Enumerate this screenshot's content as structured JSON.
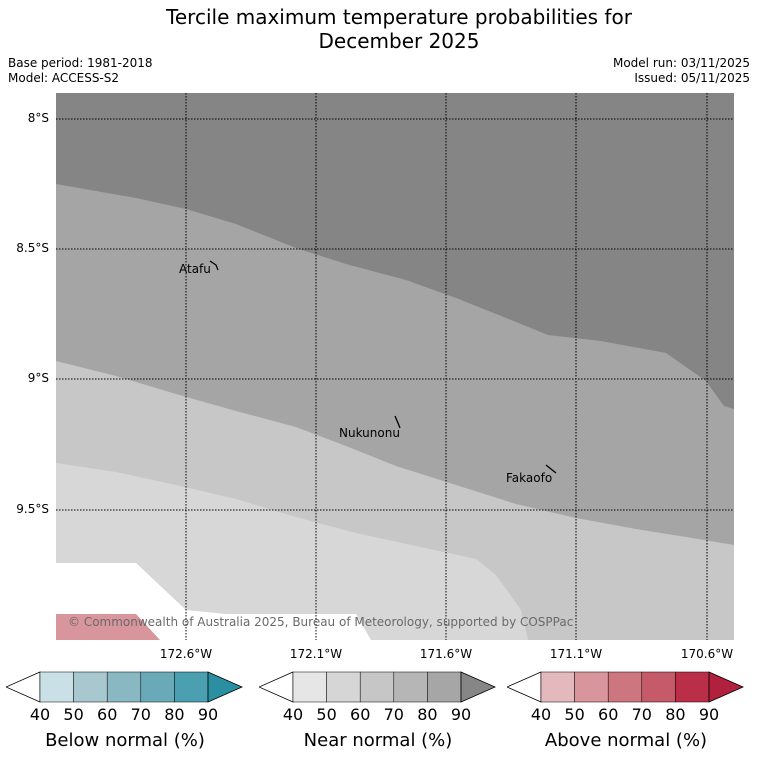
{
  "title_line1": "Tercile maximum temperature probabilities for",
  "title_line2": "December 2025",
  "base_period": "Base period: 1981-2018",
  "model": "Model: ACCESS-S2",
  "model_run": "Model run: 03/11/2025",
  "issued": "Issued: 05/11/2025",
  "copyright": "© Commonwealth of Australia 2025, Bureau of Meteorology, supported by COSPPac",
  "lat_labels": [
    "8°S",
    "8.5°S",
    "9°S",
    "9.5°S"
  ],
  "lon_labels": [
    "172.6°W",
    "172.1°W",
    "171.6°W",
    "171.1°W",
    "170.6°W"
  ],
  "places": [
    "Atafu",
    "Nukunonu",
    "Fakaofo"
  ],
  "colorbars": [
    {
      "title": "Below normal (%)",
      "ticks": [
        "40",
        "50",
        "60",
        "70",
        "80",
        "90"
      ],
      "colors": [
        "#ffffff",
        "#c9e1e6",
        "#a7c8cf",
        "#89b8c3",
        "#6aaab8",
        "#4aa0b0",
        "#2b8fa2"
      ]
    },
    {
      "title": "Near normal (%)",
      "ticks": [
        "40",
        "50",
        "60",
        "70",
        "80",
        "90"
      ],
      "colors": [
        "#ffffff",
        "#e6e6e6",
        "#d6d6d6",
        "#c6c6c6",
        "#b6b6b6",
        "#a6a6a6",
        "#868686"
      ]
    },
    {
      "title": "Above normal (%)",
      "ticks": [
        "40",
        "50",
        "60",
        "70",
        "80",
        "90"
      ],
      "colors": [
        "#ffffff",
        "#e3b9be",
        "#d8959c",
        "#ce7680",
        "#c55a68",
        "#ba2e48",
        "#b1203c"
      ]
    }
  ]
}
